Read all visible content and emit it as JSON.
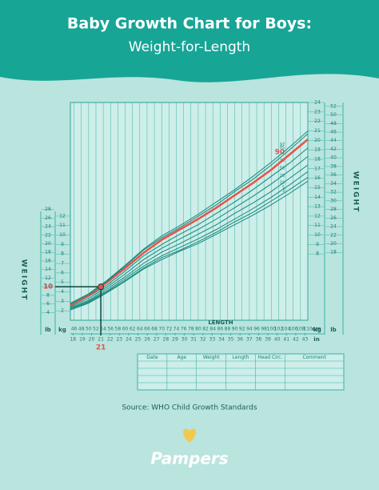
{
  "header": {
    "title": "Baby Growth Chart for Boys:",
    "subtitle": "Weight-for-Length"
  },
  "chart_data": {
    "type": "line",
    "y_axis_label": "WEIGHT",
    "x_axis_label": "LENGTH",
    "x_unit": "cm",
    "x2_unit": "in",
    "y_unit": "kg",
    "y2_unit": "lb",
    "x": [
      45,
      50,
      55,
      60,
      65,
      70,
      75,
      80,
      85,
      90,
      95,
      100,
      105,
      110
    ],
    "series": [
      {
        "name": "3",
        "color": "#17877d",
        "values": [
          2.1,
          2.8,
          3.9,
          5.1,
          6.4,
          7.4,
          8.3,
          9.1,
          10.1,
          11.1,
          12.1,
          13.2,
          14.4,
          15.7
        ]
      },
      {
        "name": "5",
        "color": "#17877d",
        "values": [
          2.1,
          2.9,
          4.0,
          5.2,
          6.5,
          7.6,
          8.4,
          9.3,
          10.3,
          11.4,
          12.4,
          13.6,
          14.8,
          16.1
        ]
      },
      {
        "name": "10",
        "color": "#17877d",
        "values": [
          2.2,
          3.0,
          4.1,
          5.4,
          6.7,
          7.8,
          8.7,
          9.6,
          10.6,
          11.7,
          12.8,
          14.0,
          15.3,
          16.7
        ]
      },
      {
        "name": "25",
        "color": "#17877d",
        "values": [
          2.3,
          3.1,
          4.3,
          5.6,
          7.0,
          8.2,
          9.1,
          10.1,
          11.1,
          12.3,
          13.4,
          14.6,
          16.0,
          17.4
        ]
      },
      {
        "name": "50",
        "color": "#17877d",
        "values": [
          2.4,
          3.3,
          4.5,
          5.9,
          7.4,
          8.6,
          9.6,
          10.6,
          11.7,
          12.9,
          14.1,
          15.4,
          16.8,
          18.3
        ]
      },
      {
        "name": "75",
        "color": "#17877d",
        "values": [
          2.5,
          3.5,
          4.7,
          6.2,
          7.8,
          9.0,
          10.1,
          11.1,
          12.3,
          13.5,
          14.8,
          16.2,
          17.6,
          19.2
        ]
      },
      {
        "name": "90",
        "color": "#e8524a",
        "values": [
          2.6,
          3.6,
          5.0,
          6.5,
          8.1,
          9.5,
          10.6,
          11.7,
          12.9,
          14.2,
          15.5,
          16.9,
          18.5,
          20.1
        ]
      },
      {
        "name": "95",
        "color": "#17877d",
        "values": [
          2.7,
          3.7,
          5.1,
          6.7,
          8.4,
          9.7,
          10.8,
          12.0,
          13.2,
          14.6,
          15.9,
          17.4,
          19.0,
          20.7
        ]
      },
      {
        "name": "97",
        "color": "#17877d",
        "values": [
          2.8,
          3.8,
          5.2,
          6.8,
          8.5,
          9.9,
          11.0,
          12.2,
          13.5,
          14.8,
          16.2,
          17.7,
          19.3,
          21.0
        ]
      }
    ],
    "xlim": [
      45,
      110
    ],
    "ylim": [
      1,
      24
    ],
    "xticks": [
      46,
      48,
      50,
      52,
      54,
      56,
      58,
      60,
      62,
      64,
      66,
      68,
      70,
      72,
      74,
      76,
      78,
      80,
      82,
      84,
      86,
      88,
      90,
      92,
      94,
      96,
      98,
      100,
      102,
      104,
      106,
      108,
      110
    ],
    "x2ticks": [
      18,
      19,
      20,
      21,
      22,
      23,
      24,
      25,
      26,
      27,
      28,
      29,
      30,
      31,
      32,
      33,
      34,
      35,
      36,
      37,
      38,
      39,
      40,
      41,
      42,
      43
    ],
    "yticks": [
      2,
      3,
      4,
      5,
      6,
      7,
      8,
      9,
      10,
      11,
      12
    ],
    "yticks_right": [
      8,
      9,
      10,
      11,
      12,
      13,
      14,
      15,
      16,
      17,
      18,
      19,
      20,
      21,
      22,
      23,
      24
    ],
    "y2lim": [
      2.2,
      52.9
    ],
    "y2ticks": [
      4,
      6,
      8,
      10,
      12,
      14,
      16,
      18,
      20,
      22,
      24,
      26,
      28
    ],
    "y2ticks_right": [
      18,
      20,
      22,
      24,
      26,
      28,
      30,
      32,
      34,
      36,
      38,
      40,
      42,
      44,
      46,
      48,
      50,
      52
    ],
    "grid": true,
    "marker": {
      "weight_lb": 10,
      "length_in": 21,
      "color": "#e8524a"
    },
    "table_columns": [
      "Date",
      "Age",
      "Weight",
      "Length",
      "Head Circ.",
      "Comment"
    ]
  },
  "source": "Source: WHO Child Growth Standards",
  "logo": "Pampers"
}
